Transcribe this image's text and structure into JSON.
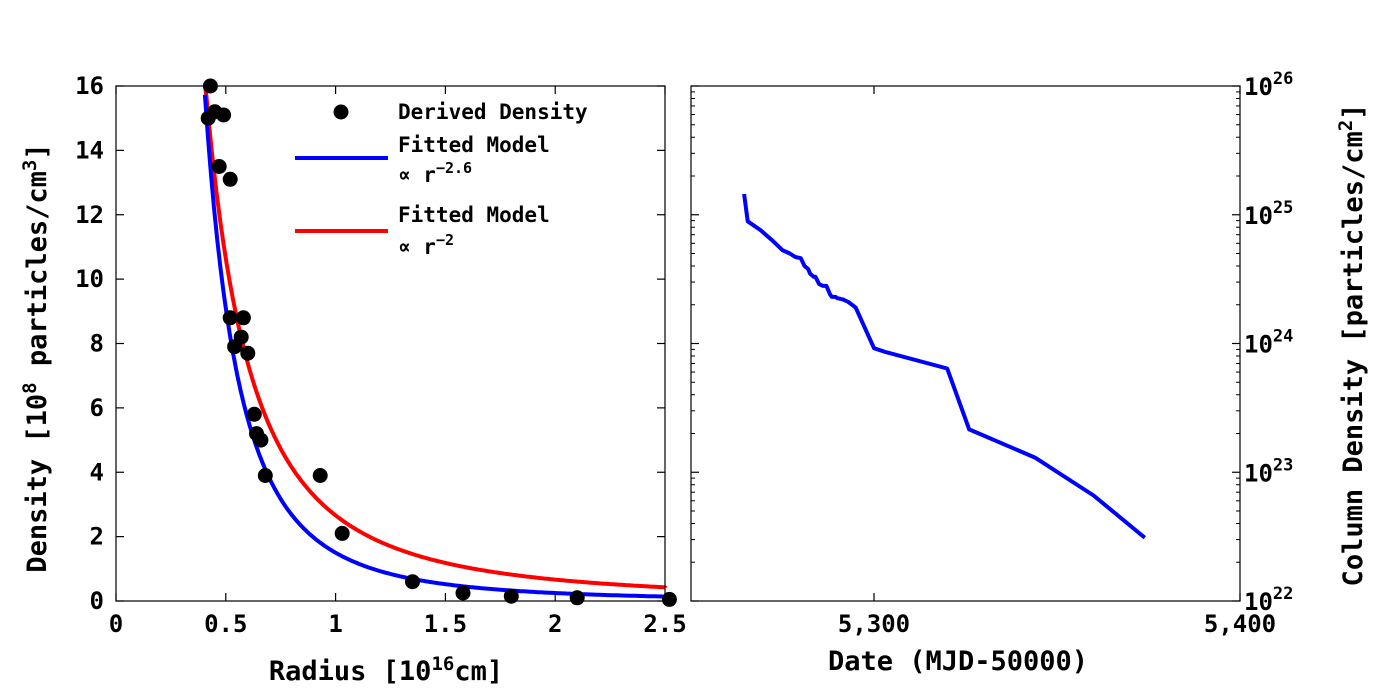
{
  "chart_data": [
    {
      "type": "scatter",
      "xlabel": "Radius [10^16cm]",
      "ylabel": "Density [10^8 particles/cm^3]",
      "xlim": [
        0,
        2.5
      ],
      "ylim": [
        0,
        16
      ],
      "xticks": [
        "0",
        "0.5",
        "1",
        "1.5",
        "2",
        "2.5"
      ],
      "yticks": [
        "0",
        "2",
        "4",
        "6",
        "8",
        "10",
        "12",
        "14",
        "16"
      ],
      "grid": false,
      "legend_position": "top-right",
      "series": [
        {
          "name": "Derived Density",
          "kind": "points",
          "color": "#000000",
          "x": [
            0.42,
            0.43,
            0.45,
            0.47,
            0.49,
            0.52,
            0.52,
            0.54,
            0.57,
            0.58,
            0.6,
            0.63,
            0.64,
            0.66,
            0.68,
            0.93,
            1.03,
            1.35,
            1.58,
            1.8,
            2.1,
            2.52
          ],
          "y": [
            15.0,
            16.0,
            15.2,
            13.5,
            15.1,
            13.1,
            8.8,
            7.9,
            8.2,
            8.8,
            7.7,
            5.8,
            5.2,
            5.0,
            3.9,
            3.9,
            2.1,
            0.6,
            0.25,
            0.15,
            0.1,
            0.05
          ]
        },
        {
          "name": "Fitted Model ∝ r^-2.6",
          "kind": "line",
          "color": "#0000ff",
          "model": "power",
          "exponent": -2.6,
          "coefficient": 1.5,
          "x_range": [
            0.405,
            2.52
          ]
        },
        {
          "name": "Fitted Model ∝ r^-2",
          "kind": "line",
          "color": "#ff0000",
          "model": "power",
          "exponent": -2.0,
          "coefficient": 2.66,
          "x_range": [
            0.405,
            2.52
          ]
        }
      ]
    },
    {
      "type": "line",
      "xlabel": "Date (MJD-50000)",
      "ylabel": "Column Density [particles/cm^2]",
      "yscale": "log",
      "xlim": [
        5250,
        5400
      ],
      "ylim": [
        1e+22,
        1e+26
      ],
      "xticks": [
        "5,300",
        "5,400"
      ],
      "yticks": [
        "10^22",
        "10^23",
        "10^24",
        "10^25",
        "10^26"
      ],
      "grid": false,
      "series": [
        {
          "color": "#0000ff",
          "x": [
            5264.5,
            5265.5,
            5269,
            5272,
            5275,
            5277,
            5278.5,
            5280,
            5281,
            5282,
            5282.5,
            5283.5,
            5284,
            5285,
            5286,
            5287,
            5288,
            5288.5,
            5289.5,
            5290,
            5291.5,
            5293,
            5295,
            5300,
            5303,
            5320,
            5326,
            5344,
            5360,
            5374
          ],
          "y": [
            1.45e+25,
            8.9e+24,
            7.6e+24,
            6.4e+24,
            5.3e+24,
            5e+24,
            4.7e+24,
            4.6e+24,
            4e+24,
            3.8e+24,
            3.5e+24,
            3.3e+24,
            3.3e+24,
            2.9e+24,
            2.8e+24,
            2.8e+24,
            2.4e+24,
            2.3e+24,
            2.3e+24,
            2.25e+24,
            2.2e+24,
            2.1e+24,
            1.9e+24,
            9.2e+23,
            8.6e+23,
            6.4e+23,
            2.15e+23,
            1.3e+23,
            6.6e+22,
            3.1e+22
          ]
        }
      ]
    }
  ]
}
